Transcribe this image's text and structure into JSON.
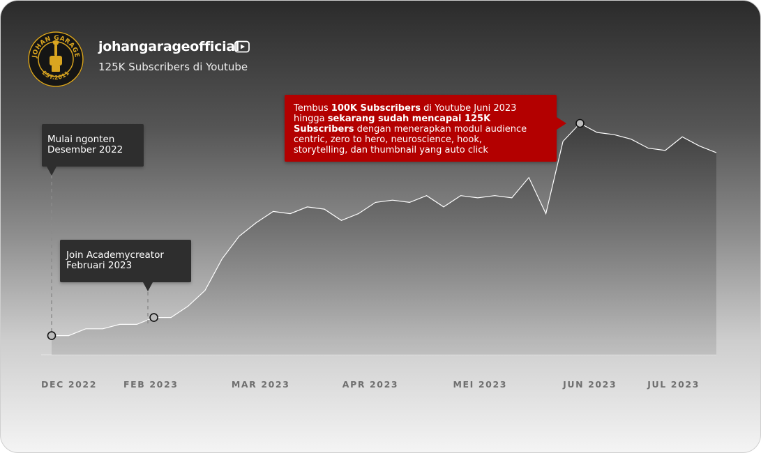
{
  "profile": {
    "channel_name": "johangarageofficial",
    "subscribers_text": "125K Subscribers di Youtube",
    "platform_icon": "youtube-icon",
    "logo": {
      "icon": "garage-logo",
      "colors": {
        "ring": "#111111",
        "accent": "#d9a520"
      },
      "text_top": "JOHAN GARAGE",
      "text_bottom": "EST.2011"
    }
  },
  "annotations": {
    "start": {
      "line1": "Mulai ngonten",
      "line2": "Desember 2022"
    },
    "join": {
      "line1": "Join Academycreator",
      "line2": "Februari 2023"
    },
    "milestone": {
      "l1_pre": "Tembus ",
      "l1_bold": "100K Subscribers",
      "l1_post": " di Youtube Juni 2023",
      "l2_pre": "hingga ",
      "l2_bold": "sekarang sudah mencapai 125K",
      "l3_bold": "Subscribers",
      "l3_post": " dengan menerapkan modul audience",
      "l4": "centric, zero to hero, neuroscience, hook,",
      "l5": "storytelling, dan thumbnail yang auto click"
    }
  },
  "chart_data": {
    "type": "area",
    "title": "",
    "xlabel": "",
    "ylabel": "",
    "grid": false,
    "legend": "none",
    "x_tick_labels": [
      "DEC 2022",
      "FEB 2023",
      "MAR 2023",
      "APR 2023",
      "MEI 2023",
      "JUN 2023",
      "JUL 2023"
    ],
    "y_range_relative": [
      0,
      1
    ],
    "series_note": "relative subscriber trend (0 = baseline, 1 = peak), no y-axis printed",
    "values": [
      0.06,
      0.06,
      0.09,
      0.09,
      0.11,
      0.11,
      0.14,
      0.14,
      0.19,
      0.26,
      0.4,
      0.5,
      0.56,
      0.61,
      0.6,
      0.63,
      0.62,
      0.57,
      0.6,
      0.65,
      0.66,
      0.65,
      0.68,
      0.63,
      0.68,
      0.67,
      0.68,
      0.67,
      0.76,
      0.6,
      0.92,
      1.0,
      0.96,
      0.95,
      0.93,
      0.89,
      0.88,
      0.94,
      0.9,
      0.87
    ],
    "highlight_points": [
      {
        "index": 0,
        "label": "Mulai ngonten Desember 2022"
      },
      {
        "index": 6,
        "label": "Join Academycreator Februari 2023"
      },
      {
        "index": 31,
        "label": "Tembus 100K Subscribers di Youtube Juni 2023"
      }
    ],
    "colors": {
      "line": "#ffffff",
      "area_top": "#3c3c3c",
      "area_bottom": "#9a9a9a",
      "marker_fill": "#bdbdbd",
      "marker_stroke": "#111111",
      "tick": "#6f6f6f"
    }
  }
}
